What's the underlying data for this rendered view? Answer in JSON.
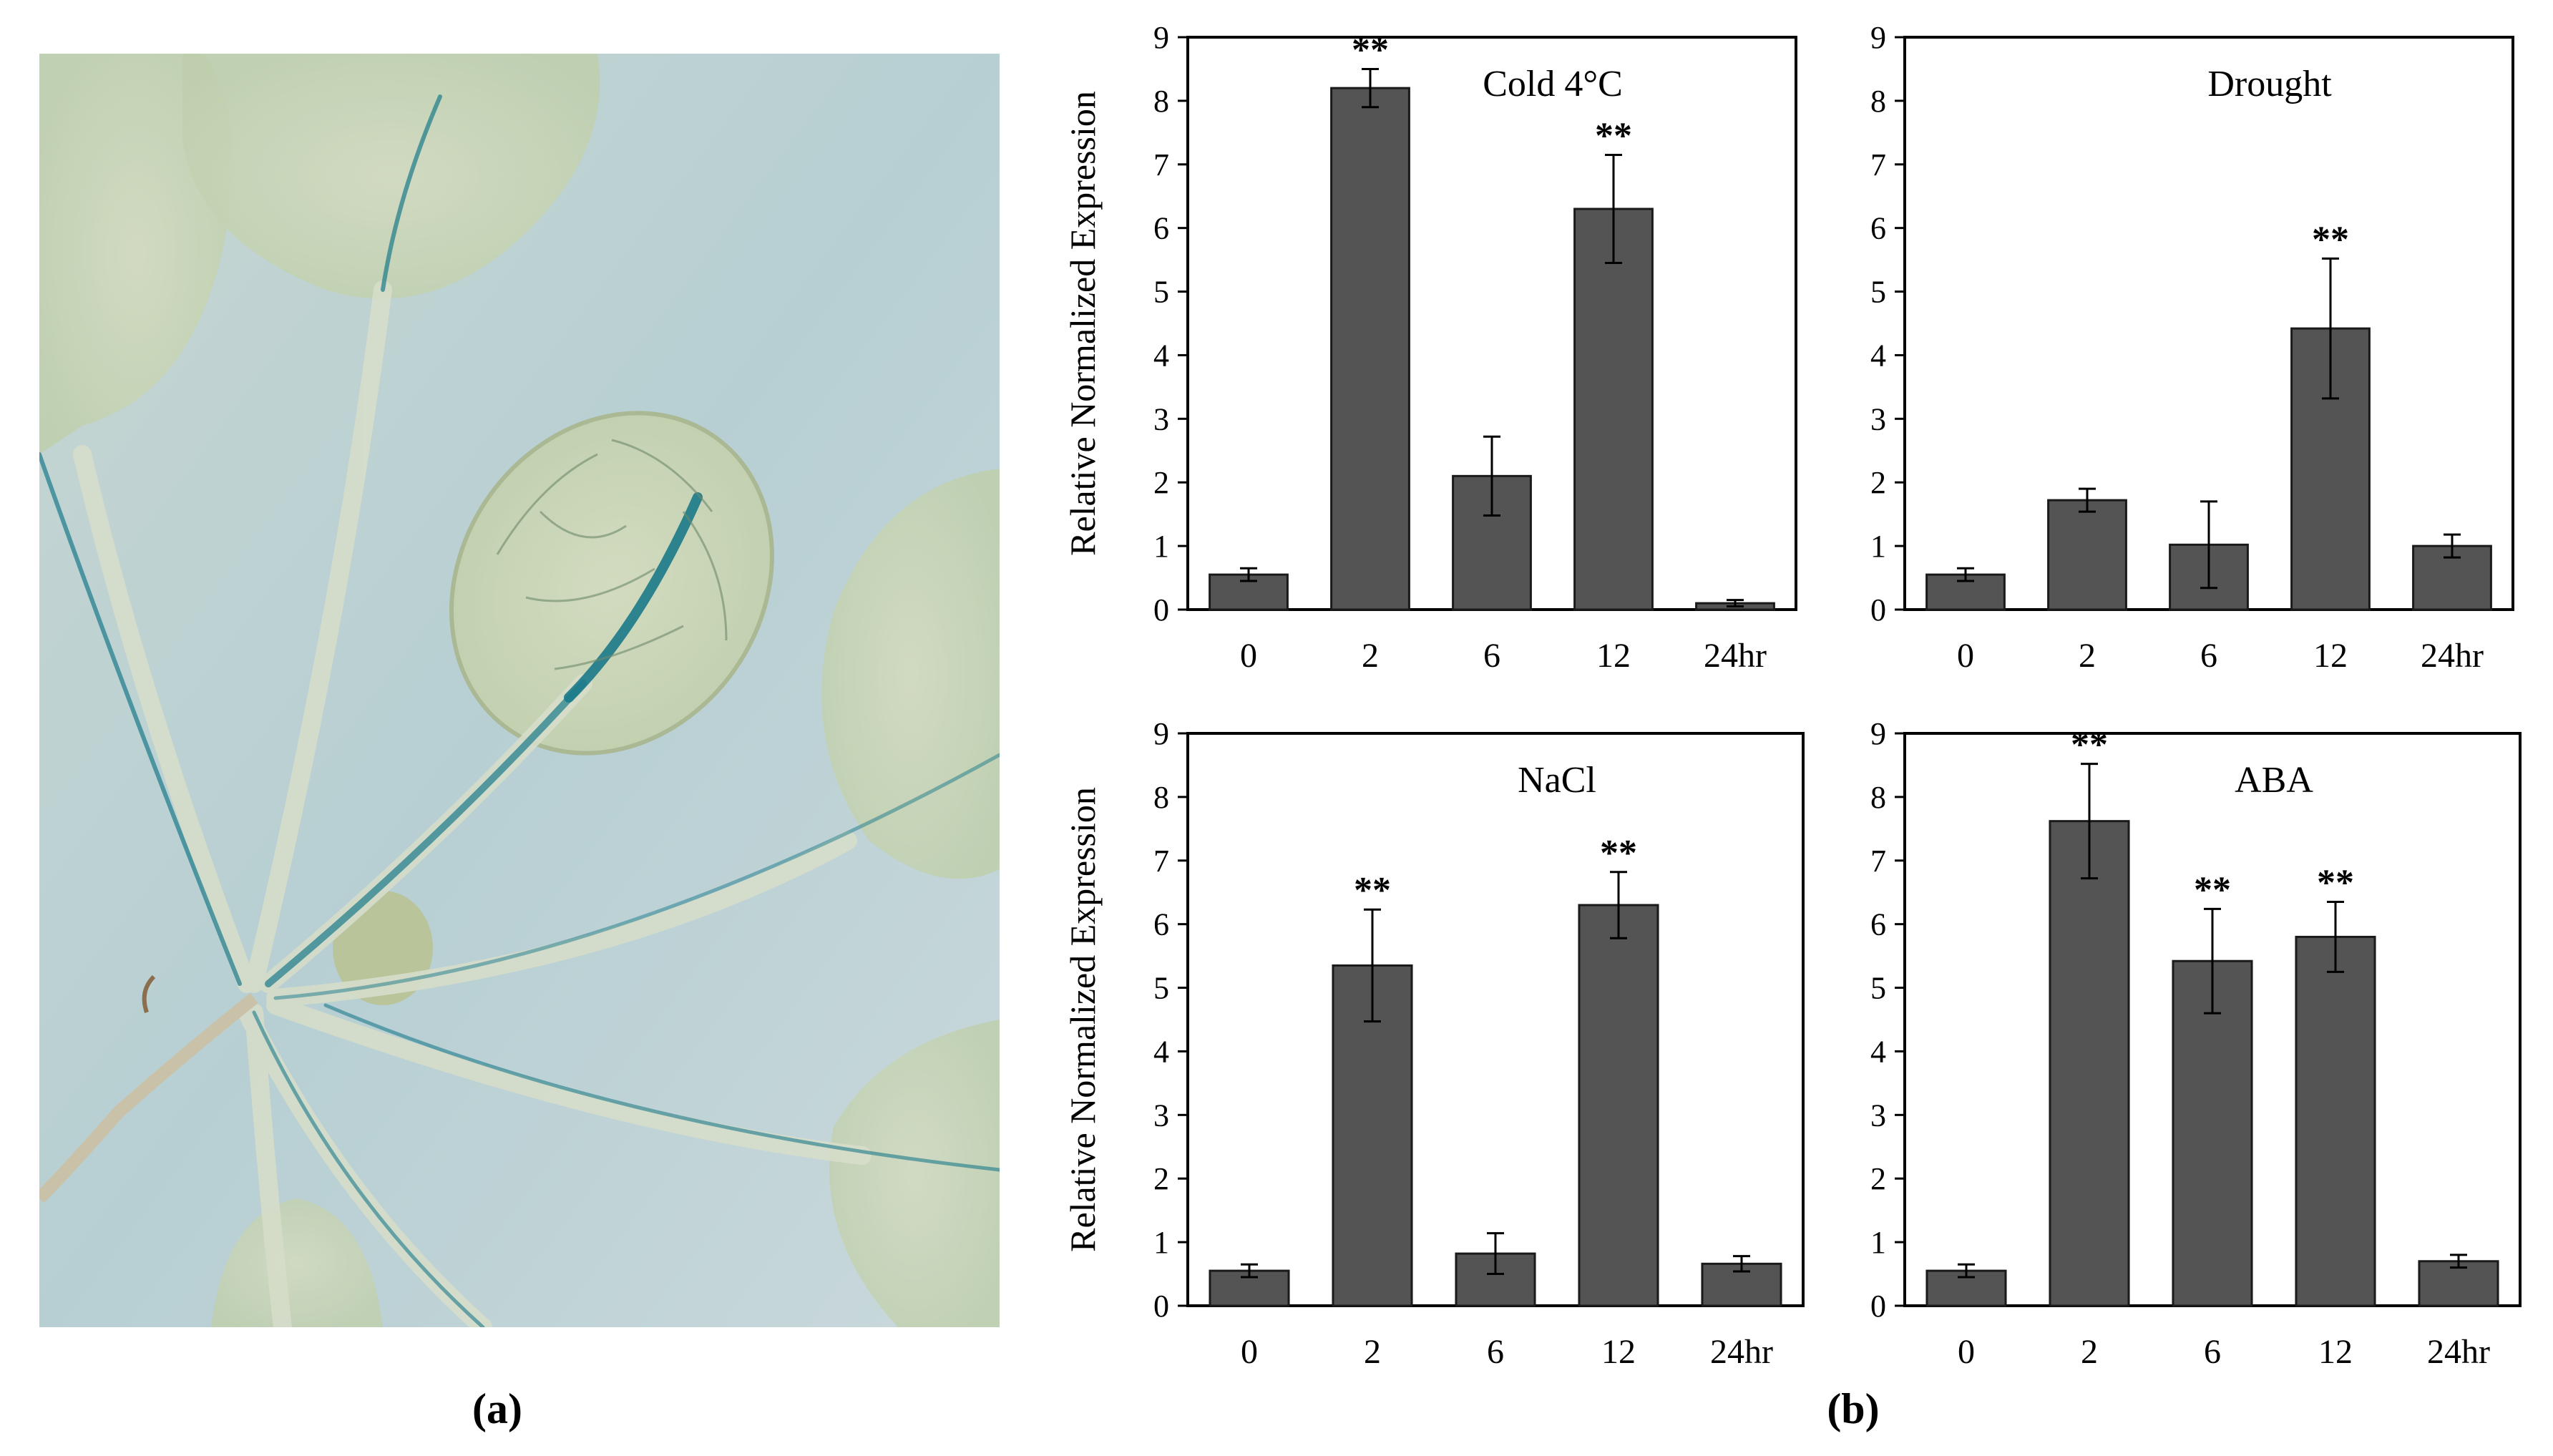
{
  "panel_labels": {
    "a": "(a)",
    "b": "(b)"
  },
  "colors": {
    "bar_fill": "#545454",
    "bar_stroke": "#1a1a1a",
    "photo_background": "#b7cfd3",
    "leaf_tissue": "#cdd6bd",
    "gus_stain": "#1b7a8a"
  },
  "photo": {
    "description_icon": "gus-stained-seedling-image"
  },
  "chart_data": [
    {
      "type": "bar",
      "title": "Cold 4°C",
      "ylabel": "Relative Normalized Expression",
      "categories": [
        "0",
        "2",
        "6",
        "12",
        "24hr"
      ],
      "values": [
        0.55,
        8.2,
        2.1,
        6.3,
        0.1
      ],
      "errors": [
        0.1,
        0.3,
        0.62,
        0.85,
        0.05
      ],
      "annotations": [
        "",
        "**",
        "",
        "**",
        ""
      ],
      "ylim": [
        0,
        9
      ],
      "yticks": [
        0,
        1,
        2,
        3,
        4,
        5,
        6,
        7,
        8,
        9
      ],
      "grid": false
    },
    {
      "type": "bar",
      "title": "Drought",
      "ylabel": "",
      "categories": [
        "0",
        "2",
        "6",
        "12",
        "24hr"
      ],
      "values": [
        0.55,
        1.72,
        1.02,
        4.42,
        1.0
      ],
      "errors": [
        0.1,
        0.18,
        0.68,
        1.1,
        0.18
      ],
      "annotations": [
        "",
        "",
        "",
        "**",
        ""
      ],
      "ylim": [
        0,
        9
      ],
      "yticks": [
        0,
        1,
        2,
        3,
        4,
        5,
        6,
        7,
        8,
        9
      ],
      "grid": false
    },
    {
      "type": "bar",
      "title": "NaCl",
      "ylabel": "Relative Normalized Expression",
      "categories": [
        "0",
        "2",
        "6",
        "12",
        "24hr"
      ],
      "values": [
        0.55,
        5.35,
        0.82,
        6.3,
        0.66
      ],
      "errors": [
        0.1,
        0.88,
        0.32,
        0.52,
        0.12
      ],
      "annotations": [
        "",
        "**",
        "",
        "**",
        ""
      ],
      "ylim": [
        0,
        9
      ],
      "yticks": [
        0,
        1,
        2,
        3,
        4,
        5,
        6,
        7,
        8,
        9
      ],
      "grid": false
    },
    {
      "type": "bar",
      "title": "ABA",
      "ylabel": "",
      "categories": [
        "0",
        "2",
        "6",
        "12",
        "24hr"
      ],
      "values": [
        0.55,
        7.62,
        5.42,
        5.8,
        0.7
      ],
      "errors": [
        0.1,
        0.9,
        0.82,
        0.55,
        0.1
      ],
      "annotations": [
        "",
        "**",
        "**",
        "**",
        ""
      ],
      "ylim": [
        0,
        9
      ],
      "yticks": [
        0,
        1,
        2,
        3,
        4,
        5,
        6,
        7,
        8,
        9
      ],
      "grid": false
    }
  ]
}
